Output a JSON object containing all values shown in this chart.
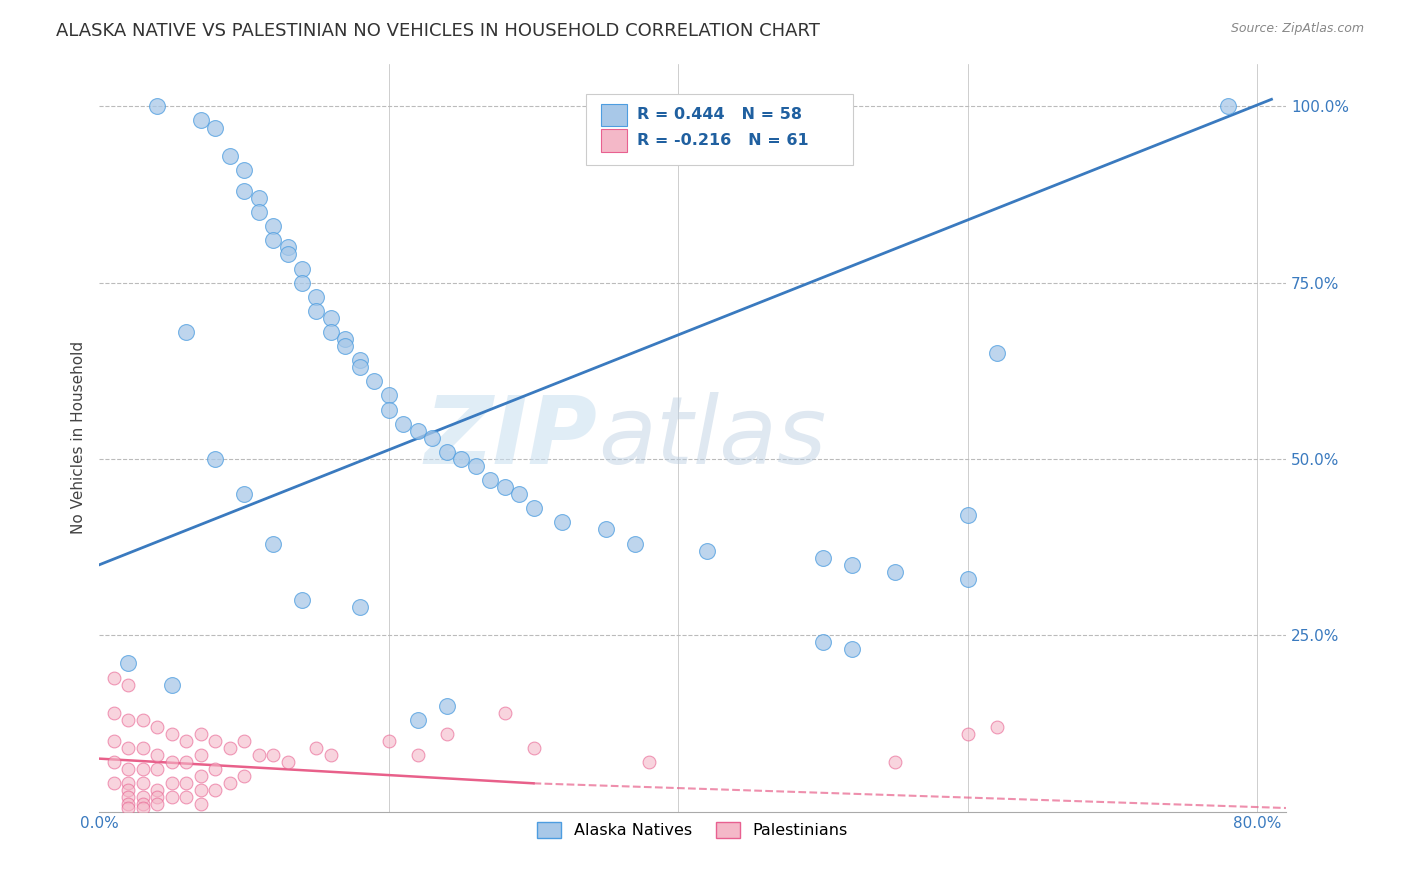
{
  "title": "ALASKA NATIVE VS PALESTINIAN NO VEHICLES IN HOUSEHOLD CORRELATION CHART",
  "source": "Source: ZipAtlas.com",
  "ylabel": "No Vehicles in Household",
  "xlim": [
    0.0,
    0.82
  ],
  "ylim": [
    0.0,
    1.06
  ],
  "xticks": [
    0.0,
    0.2,
    0.4,
    0.6,
    0.8
  ],
  "xticklabels": [
    "0.0%",
    "",
    "",
    "",
    "80.0%"
  ],
  "yticks": [
    0.0,
    0.25,
    0.5,
    0.75,
    1.0
  ],
  "yticklabels_right": [
    "",
    "25.0%",
    "50.0%",
    "75.0%",
    "100.0%"
  ],
  "grid_color": "#bbbbbb",
  "background_color": "#ffffff",
  "watermark_zip": "ZIP",
  "watermark_atlas": "atlas",
  "legend_r1": "R = 0.444",
  "legend_n1": "N = 58",
  "legend_r2": "R = -0.216",
  "legend_n2": "N = 61",
  "blue_fill": "#a8c8e8",
  "blue_edge": "#4d9de0",
  "pink_fill": "#f4b8c8",
  "pink_edge": "#e86090",
  "blue_line": "#3a7abf",
  "pink_line": "#e8608a",
  "title_fontsize": 13,
  "ylabel_fontsize": 11,
  "tick_fontsize": 11,
  "alaska_x": [
    0.04,
    0.07,
    0.08,
    0.09,
    0.1,
    0.1,
    0.11,
    0.11,
    0.12,
    0.12,
    0.13,
    0.13,
    0.14,
    0.14,
    0.15,
    0.15,
    0.16,
    0.16,
    0.17,
    0.17,
    0.18,
    0.18,
    0.19,
    0.2,
    0.2,
    0.21,
    0.22,
    0.23,
    0.24,
    0.25,
    0.26,
    0.27,
    0.28,
    0.29,
    0.3,
    0.32,
    0.35,
    0.37,
    0.42,
    0.5,
    0.52,
    0.55,
    0.6,
    0.62,
    0.78,
    0.02,
    0.05,
    0.06,
    0.08,
    0.1,
    0.12,
    0.14,
    0.18,
    0.22,
    0.24,
    0.5,
    0.52,
    0.6
  ],
  "alaska_y": [
    1.0,
    0.98,
    0.97,
    0.93,
    0.91,
    0.88,
    0.87,
    0.85,
    0.83,
    0.81,
    0.8,
    0.79,
    0.77,
    0.75,
    0.73,
    0.71,
    0.7,
    0.68,
    0.67,
    0.66,
    0.64,
    0.63,
    0.61,
    0.59,
    0.57,
    0.55,
    0.54,
    0.53,
    0.51,
    0.5,
    0.49,
    0.47,
    0.46,
    0.45,
    0.43,
    0.41,
    0.4,
    0.38,
    0.37,
    0.36,
    0.35,
    0.34,
    0.33,
    0.65,
    1.0,
    0.21,
    0.18,
    0.68,
    0.5,
    0.45,
    0.38,
    0.3,
    0.29,
    0.13,
    0.15,
    0.24,
    0.23,
    0.42
  ],
  "pales_x": [
    0.01,
    0.01,
    0.01,
    0.01,
    0.01,
    0.02,
    0.02,
    0.02,
    0.02,
    0.02,
    0.02,
    0.02,
    0.02,
    0.02,
    0.03,
    0.03,
    0.03,
    0.03,
    0.03,
    0.03,
    0.03,
    0.04,
    0.04,
    0.04,
    0.04,
    0.04,
    0.04,
    0.05,
    0.05,
    0.05,
    0.05,
    0.06,
    0.06,
    0.06,
    0.06,
    0.07,
    0.07,
    0.07,
    0.07,
    0.07,
    0.08,
    0.08,
    0.08,
    0.09,
    0.09,
    0.1,
    0.1,
    0.11,
    0.12,
    0.13,
    0.15,
    0.16,
    0.2,
    0.22,
    0.24,
    0.28,
    0.3,
    0.38,
    0.55,
    0.6,
    0.62
  ],
  "pales_y": [
    0.19,
    0.14,
    0.1,
    0.07,
    0.04,
    0.18,
    0.13,
    0.09,
    0.06,
    0.04,
    0.03,
    0.02,
    0.01,
    0.005,
    0.13,
    0.09,
    0.06,
    0.04,
    0.02,
    0.01,
    0.005,
    0.12,
    0.08,
    0.06,
    0.03,
    0.02,
    0.01,
    0.11,
    0.07,
    0.04,
    0.02,
    0.1,
    0.07,
    0.04,
    0.02,
    0.11,
    0.08,
    0.05,
    0.03,
    0.01,
    0.1,
    0.06,
    0.03,
    0.09,
    0.04,
    0.1,
    0.05,
    0.08,
    0.08,
    0.07,
    0.09,
    0.08,
    0.1,
    0.08,
    0.11,
    0.14,
    0.09,
    0.07,
    0.07,
    0.11,
    0.12
  ]
}
